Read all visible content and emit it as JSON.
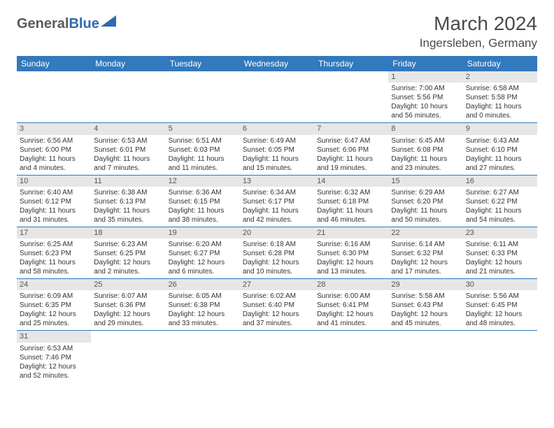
{
  "logo": {
    "part1": "General",
    "part2": "Blue",
    "shape_color": "#2d6bb0"
  },
  "title": "March 2024",
  "location": "Ingersleben, Germany",
  "colors": {
    "header_bg": "#3279bd",
    "header_text": "#ffffff",
    "daynum_bg": "#e6e6e6",
    "border": "#3279bd",
    "text": "#333333"
  },
  "weekdays": [
    "Sunday",
    "Monday",
    "Tuesday",
    "Wednesday",
    "Thursday",
    "Friday",
    "Saturday"
  ],
  "weeks": [
    [
      null,
      null,
      null,
      null,
      null,
      {
        "n": "1",
        "sr": "Sunrise: 7:00 AM",
        "ss": "Sunset: 5:56 PM",
        "d1": "Daylight: 10 hours",
        "d2": "and 56 minutes."
      },
      {
        "n": "2",
        "sr": "Sunrise: 6:58 AM",
        "ss": "Sunset: 5:58 PM",
        "d1": "Daylight: 11 hours",
        "d2": "and 0 minutes."
      }
    ],
    [
      {
        "n": "3",
        "sr": "Sunrise: 6:56 AM",
        "ss": "Sunset: 6:00 PM",
        "d1": "Daylight: 11 hours",
        "d2": "and 4 minutes."
      },
      {
        "n": "4",
        "sr": "Sunrise: 6:53 AM",
        "ss": "Sunset: 6:01 PM",
        "d1": "Daylight: 11 hours",
        "d2": "and 7 minutes."
      },
      {
        "n": "5",
        "sr": "Sunrise: 6:51 AM",
        "ss": "Sunset: 6:03 PM",
        "d1": "Daylight: 11 hours",
        "d2": "and 11 minutes."
      },
      {
        "n": "6",
        "sr": "Sunrise: 6:49 AM",
        "ss": "Sunset: 6:05 PM",
        "d1": "Daylight: 11 hours",
        "d2": "and 15 minutes."
      },
      {
        "n": "7",
        "sr": "Sunrise: 6:47 AM",
        "ss": "Sunset: 6:06 PM",
        "d1": "Daylight: 11 hours",
        "d2": "and 19 minutes."
      },
      {
        "n": "8",
        "sr": "Sunrise: 6:45 AM",
        "ss": "Sunset: 6:08 PM",
        "d1": "Daylight: 11 hours",
        "d2": "and 23 minutes."
      },
      {
        "n": "9",
        "sr": "Sunrise: 6:43 AM",
        "ss": "Sunset: 6:10 PM",
        "d1": "Daylight: 11 hours",
        "d2": "and 27 minutes."
      }
    ],
    [
      {
        "n": "10",
        "sr": "Sunrise: 6:40 AM",
        "ss": "Sunset: 6:12 PM",
        "d1": "Daylight: 11 hours",
        "d2": "and 31 minutes."
      },
      {
        "n": "11",
        "sr": "Sunrise: 6:38 AM",
        "ss": "Sunset: 6:13 PM",
        "d1": "Daylight: 11 hours",
        "d2": "and 35 minutes."
      },
      {
        "n": "12",
        "sr": "Sunrise: 6:36 AM",
        "ss": "Sunset: 6:15 PM",
        "d1": "Daylight: 11 hours",
        "d2": "and 38 minutes."
      },
      {
        "n": "13",
        "sr": "Sunrise: 6:34 AM",
        "ss": "Sunset: 6:17 PM",
        "d1": "Daylight: 11 hours",
        "d2": "and 42 minutes."
      },
      {
        "n": "14",
        "sr": "Sunrise: 6:32 AM",
        "ss": "Sunset: 6:18 PM",
        "d1": "Daylight: 11 hours",
        "d2": "and 46 minutes."
      },
      {
        "n": "15",
        "sr": "Sunrise: 6:29 AM",
        "ss": "Sunset: 6:20 PM",
        "d1": "Daylight: 11 hours",
        "d2": "and 50 minutes."
      },
      {
        "n": "16",
        "sr": "Sunrise: 6:27 AM",
        "ss": "Sunset: 6:22 PM",
        "d1": "Daylight: 11 hours",
        "d2": "and 54 minutes."
      }
    ],
    [
      {
        "n": "17",
        "sr": "Sunrise: 6:25 AM",
        "ss": "Sunset: 6:23 PM",
        "d1": "Daylight: 11 hours",
        "d2": "and 58 minutes."
      },
      {
        "n": "18",
        "sr": "Sunrise: 6:23 AM",
        "ss": "Sunset: 6:25 PM",
        "d1": "Daylight: 12 hours",
        "d2": "and 2 minutes."
      },
      {
        "n": "19",
        "sr": "Sunrise: 6:20 AM",
        "ss": "Sunset: 6:27 PM",
        "d1": "Daylight: 12 hours",
        "d2": "and 6 minutes."
      },
      {
        "n": "20",
        "sr": "Sunrise: 6:18 AM",
        "ss": "Sunset: 6:28 PM",
        "d1": "Daylight: 12 hours",
        "d2": "and 10 minutes."
      },
      {
        "n": "21",
        "sr": "Sunrise: 6:16 AM",
        "ss": "Sunset: 6:30 PM",
        "d1": "Daylight: 12 hours",
        "d2": "and 13 minutes."
      },
      {
        "n": "22",
        "sr": "Sunrise: 6:14 AM",
        "ss": "Sunset: 6:32 PM",
        "d1": "Daylight: 12 hours",
        "d2": "and 17 minutes."
      },
      {
        "n": "23",
        "sr": "Sunrise: 6:11 AM",
        "ss": "Sunset: 6:33 PM",
        "d1": "Daylight: 12 hours",
        "d2": "and 21 minutes."
      }
    ],
    [
      {
        "n": "24",
        "sr": "Sunrise: 6:09 AM",
        "ss": "Sunset: 6:35 PM",
        "d1": "Daylight: 12 hours",
        "d2": "and 25 minutes."
      },
      {
        "n": "25",
        "sr": "Sunrise: 6:07 AM",
        "ss": "Sunset: 6:36 PM",
        "d1": "Daylight: 12 hours",
        "d2": "and 29 minutes."
      },
      {
        "n": "26",
        "sr": "Sunrise: 6:05 AM",
        "ss": "Sunset: 6:38 PM",
        "d1": "Daylight: 12 hours",
        "d2": "and 33 minutes."
      },
      {
        "n": "27",
        "sr": "Sunrise: 6:02 AM",
        "ss": "Sunset: 6:40 PM",
        "d1": "Daylight: 12 hours",
        "d2": "and 37 minutes."
      },
      {
        "n": "28",
        "sr": "Sunrise: 6:00 AM",
        "ss": "Sunset: 6:41 PM",
        "d1": "Daylight: 12 hours",
        "d2": "and 41 minutes."
      },
      {
        "n": "29",
        "sr": "Sunrise: 5:58 AM",
        "ss": "Sunset: 6:43 PM",
        "d1": "Daylight: 12 hours",
        "d2": "and 45 minutes."
      },
      {
        "n": "30",
        "sr": "Sunrise: 5:56 AM",
        "ss": "Sunset: 6:45 PM",
        "d1": "Daylight: 12 hours",
        "d2": "and 48 minutes."
      }
    ],
    [
      {
        "n": "31",
        "sr": "Sunrise: 6:53 AM",
        "ss": "Sunset: 7:46 PM",
        "d1": "Daylight: 12 hours",
        "d2": "and 52 minutes."
      },
      null,
      null,
      null,
      null,
      null,
      null
    ]
  ]
}
